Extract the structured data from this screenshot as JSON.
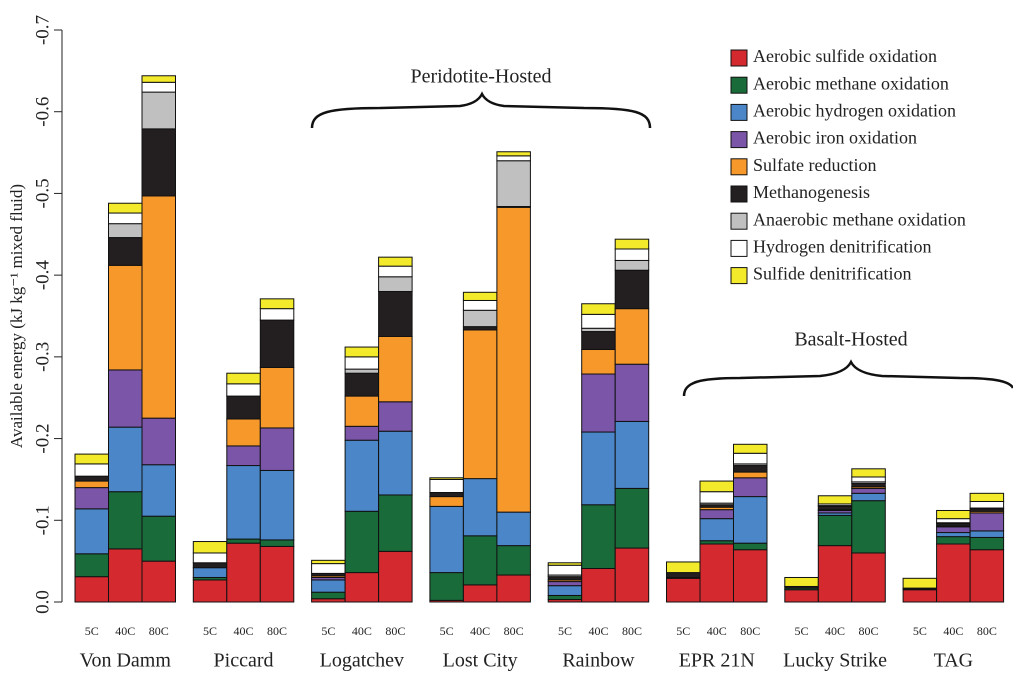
{
  "chart_data": {
    "type": "stacked_bar",
    "y_label": "Available energy (kJ kg⁻¹ mixed fluid)",
    "groups": [
      "Von Damm",
      "Piccard",
      "Logatchev",
      "Lost City",
      "Rainbow",
      "EPR 21N",
      "Lucky Strike",
      "TAG"
    ],
    "subcategories": [
      "5C",
      "40C",
      "80C"
    ],
    "annotations": [
      "Peridotite-Hosted",
      "Basalt-Hosted"
    ],
    "ylim": [
      0,
      -0.7
    ],
    "yticks": [
      {
        "value": 0,
        "label": "0.0"
      },
      -0.1,
      -0.2,
      -0.3,
      -0.4,
      -0.5,
      -0.6,
      -0.7
    ],
    "series": [
      {
        "name": "Aerobic sulfide oxidation",
        "color": "#d42a2f",
        "values": [
          -0.031,
          -0.065,
          -0.05,
          -0.027,
          -0.072,
          -0.068,
          -0.004,
          -0.036,
          -0.062,
          -0.002,
          -0.021,
          -0.033,
          -0.003,
          -0.041,
          -0.066,
          -0.029,
          -0.071,
          -0.064,
          -0.015,
          -0.069,
          -0.06,
          -0.015,
          -0.071,
          -0.064
        ]
      },
      {
        "name": "Aerobic methane oxidation",
        "color": "#1a6b3a",
        "values": [
          -0.028,
          -0.07,
          -0.055,
          -0.003,
          -0.005,
          -0.008,
          -0.008,
          -0.075,
          -0.069,
          -0.034,
          -0.06,
          -0.036,
          -0.005,
          -0.078,
          -0.073,
          -0.001,
          -0.004,
          -0.008,
          -0.002,
          -0.037,
          -0.064,
          -0.001,
          -0.009,
          -0.015
        ]
      },
      {
        "name": "Aerobic hydrogen oxidation",
        "color": "#4a86c8",
        "values": [
          -0.055,
          -0.079,
          -0.063,
          -0.012,
          -0.09,
          -0.085,
          -0.015,
          -0.087,
          -0.078,
          -0.081,
          -0.07,
          -0.041,
          -0.012,
          -0.089,
          -0.082,
          0,
          -0.027,
          -0.057,
          0,
          -0.003,
          -0.009,
          0,
          -0.005,
          -0.008
        ]
      },
      {
        "name": "Aerobic iron oxidation",
        "color": "#7b55a8",
        "values": [
          -0.026,
          -0.07,
          -0.057,
          0,
          -0.024,
          -0.052,
          -0.003,
          -0.017,
          -0.036,
          0,
          0,
          0,
          -0.005,
          -0.071,
          -0.07,
          0,
          -0.011,
          -0.023,
          0,
          -0.003,
          -0.006,
          0,
          -0.007,
          -0.022
        ]
      },
      {
        "name": "Sulfate reduction",
        "color": "#f7982a",
        "values": [
          -0.008,
          -0.128,
          -0.272,
          0,
          -0.033,
          -0.074,
          -0.002,
          -0.037,
          -0.08,
          -0.012,
          -0.182,
          -0.373,
          -0.002,
          -0.03,
          -0.068,
          0,
          -0.003,
          -0.007,
          0,
          -0.001,
          -0.002,
          0,
          -0.001,
          -0.002
        ]
      },
      {
        "name": "Methanogenesis",
        "color": "#231f20",
        "values": [
          -0.006,
          -0.034,
          -0.082,
          -0.006,
          -0.028,
          -0.058,
          -0.003,
          -0.028,
          -0.055,
          -0.005,
          -0.004,
          -0.001,
          -0.004,
          -0.022,
          -0.047,
          -0.006,
          -0.003,
          -0.008,
          -0.002,
          -0.004,
          -0.004,
          -0.001,
          -0.003,
          -0.003
        ]
      },
      {
        "name": "Anaerobic methane oxidation",
        "color": "#c0c0c0",
        "values": [
          0,
          -0.017,
          -0.045,
          0,
          0,
          0,
          0,
          -0.005,
          -0.018,
          0,
          -0.02,
          -0.056,
          -0.002,
          -0.004,
          -0.012,
          0,
          -0.002,
          -0.002,
          0,
          -0.001,
          -0.002,
          0,
          -0.001,
          -0.001
        ]
      },
      {
        "name": "Hydrogen denitrification",
        "color": "#ffffff",
        "values": [
          -0.015,
          -0.013,
          -0.012,
          -0.012,
          -0.015,
          -0.014,
          -0.012,
          -0.015,
          -0.013,
          -0.016,
          -0.012,
          -0.006,
          -0.012,
          -0.017,
          -0.014,
          0,
          -0.014,
          -0.013,
          0,
          -0.002,
          -0.006,
          0,
          -0.005,
          -0.008
        ]
      },
      {
        "name": "Sulfide denitrification",
        "color": "#f2ea2a",
        "values": [
          -0.012,
          -0.012,
          -0.008,
          -0.014,
          -0.013,
          -0.012,
          -0.004,
          -0.012,
          -0.011,
          -0.002,
          -0.01,
          -0.005,
          -0.003,
          -0.013,
          -0.012,
          -0.013,
          -0.013,
          -0.011,
          -0.011,
          -0.01,
          -0.01,
          -0.012,
          -0.01,
          -0.01
        ]
      }
    ]
  }
}
